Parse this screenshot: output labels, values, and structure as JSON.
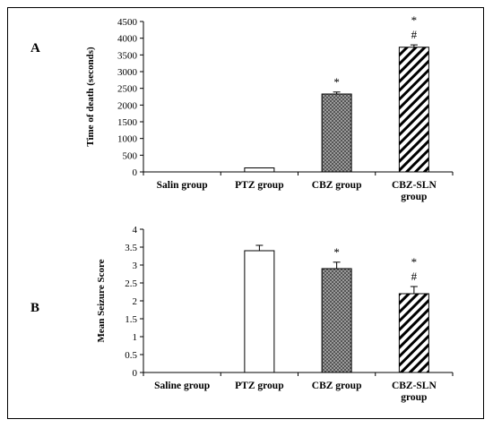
{
  "chart_data": [
    {
      "type": "bar",
      "panel_label": "A",
      "ylabel": "Time of death (seconds)",
      "xlabel": "",
      "ylim": [
        0,
        4500
      ],
      "ytick_step": 500,
      "grid": false,
      "categories": [
        [
          "Salin group"
        ],
        [
          "PTZ group"
        ],
        [
          "CBZ group"
        ],
        [
          "CBZ-SLN",
          "group"
        ]
      ],
      "values": [
        0,
        120,
        2330,
        3730
      ],
      "errors": [
        0,
        0,
        60,
        70
      ],
      "fills": [
        "white",
        "white",
        "checker",
        "hatch"
      ],
      "annotations": [
        [],
        [],
        [
          "*"
        ],
        [
          "*",
          "#"
        ]
      ]
    },
    {
      "type": "bar",
      "panel_label": "B",
      "ylabel": "Mean Seizure Score",
      "xlabel": "",
      "ylim": [
        0,
        4
      ],
      "ytick_step": 0.5,
      "grid": false,
      "categories": [
        [
          "Saline group"
        ],
        [
          "PTZ group"
        ],
        [
          "CBZ group"
        ],
        [
          "CBZ-SLN",
          "group"
        ]
      ],
      "values": [
        0,
        3.4,
        2.9,
        2.2
      ],
      "errors": [
        0,
        0.15,
        0.18,
        0.2
      ],
      "fills": [
        "white",
        "white",
        "checker",
        "hatch"
      ],
      "annotations": [
        [],
        [],
        [
          "*"
        ],
        [
          "*",
          "#"
        ]
      ]
    }
  ],
  "colors": {
    "axis": "#000000",
    "bar_stroke": "#000000",
    "checker_dark": "#555555",
    "checker_light": "#9a9a9a"
  }
}
